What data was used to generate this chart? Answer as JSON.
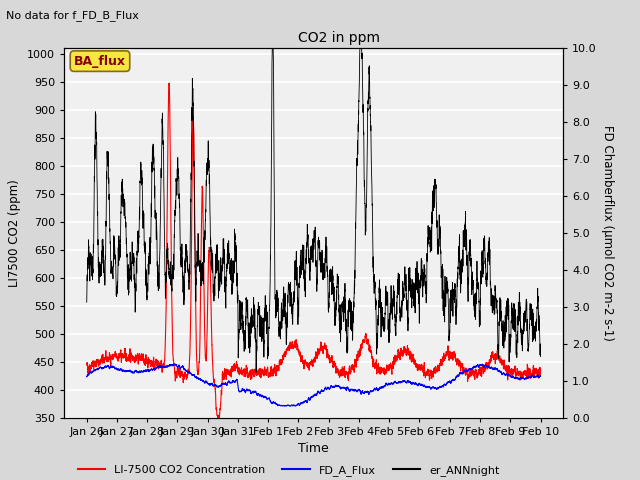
{
  "title": "CO2 in ppm",
  "top_left_text": "No data for f_FD_B_Flux",
  "annotation_box": "BA_flux",
  "xlabel": "Time",
  "ylabel_left": "LI7500 CO2 (ppm)",
  "ylabel_right": "FD Chamberflux (μmol CO2 m-2 s-1)",
  "ylim_left": [
    350,
    1010
  ],
  "ylim_right": [
    0.0,
    10.0
  ],
  "yticks_left": [
    350,
    400,
    450,
    500,
    550,
    600,
    650,
    700,
    750,
    800,
    850,
    900,
    950,
    1000
  ],
  "yticks_right": [
    0.0,
    1.0,
    2.0,
    3.0,
    4.0,
    5.0,
    6.0,
    7.0,
    8.0,
    9.0,
    10.0
  ],
  "xtick_labels": [
    "Jan 26",
    "Jan 27",
    "Jan 28",
    "Jan 29",
    "Jan 30",
    "Jan 31",
    "Feb 1",
    "Feb 2",
    "Feb 3",
    "Feb 4",
    "Feb 5",
    "Feb 6",
    "Feb 7",
    "Feb 8",
    "Feb 9",
    "Feb 10"
  ],
  "legend_entries": [
    "LI-7500 CO2 Concentration",
    "FD_A_Flux",
    "er_ANNnight"
  ],
  "legend_colors": [
    "red",
    "blue",
    "black"
  ],
  "plot_bg_color": "#f0f0f0",
  "fig_bg_color": "#d8d8d8",
  "grid_color": "white",
  "n_points": 5000,
  "seed": 42
}
